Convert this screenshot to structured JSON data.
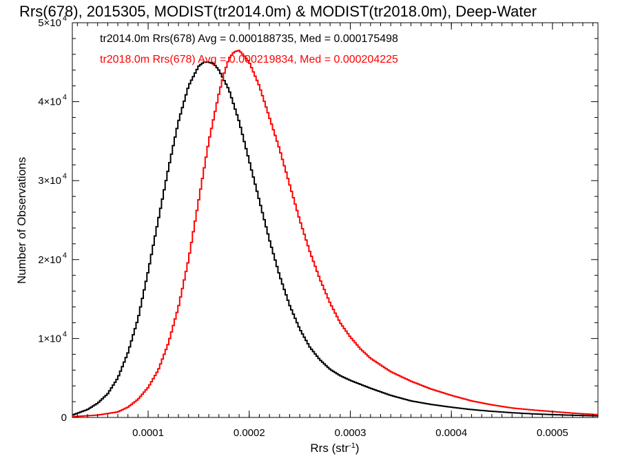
{
  "chart_data": {
    "type": "line",
    "title": "Rrs(678), 2015305, MODIST(tr2014.0m) & MODIST(tr2018.0m), Deep-Water",
    "xlabel": "Rrs (str",
    "xlabel_sup": "-1",
    "xlabel_close": ")",
    "ylabel": "Number of Observations",
    "xlim": [
      2.5e-05,
      0.000545
    ],
    "ylim": [
      0,
      50000
    ],
    "x_ticks": [
      {
        "value": 0.0001,
        "label": "0.0001"
      },
      {
        "value": 0.0002,
        "label": "0.0002"
      },
      {
        "value": 0.0003,
        "label": "0.0003"
      },
      {
        "value": 0.0004,
        "label": "0.0004"
      },
      {
        "value": 0.0005,
        "label": "0.0005"
      }
    ],
    "y_ticks": [
      {
        "value": 0,
        "mant": "0",
        "exp": ""
      },
      {
        "value": 10000,
        "mant": "1×10",
        "exp": "4"
      },
      {
        "value": 20000,
        "mant": "2×10",
        "exp": "4"
      },
      {
        "value": 30000,
        "mant": "3×10",
        "exp": "4"
      },
      {
        "value": 40000,
        "mant": "4×10",
        "exp": "4"
      },
      {
        "value": 50000,
        "mant": "5×10",
        "exp": "4"
      }
    ],
    "grid": false,
    "series": [
      {
        "label": "tr2014.0m Rrs(678) Avg = 0.000188735, Med = 0.000175498",
        "color": "#000000",
        "x": [
          2.5e-05,
          4e-05,
          5e-05,
          6e-05,
          7e-05,
          8e-05,
          9e-05,
          0.0001,
          0.00011,
          0.00012,
          0.00013,
          0.00014,
          0.00015,
          0.000155,
          0.00016,
          0.000165,
          0.00017,
          0.00018,
          0.00019,
          0.0002,
          0.00021,
          0.00022,
          0.00023,
          0.00024,
          0.00025,
          0.00026,
          0.00027,
          0.00028,
          0.00029,
          0.0003,
          0.00032,
          0.00034,
          0.00036,
          0.00038,
          0.0004,
          0.00042,
          0.00044,
          0.00046,
          0.00048,
          0.0005,
          0.00052,
          0.000545
        ],
        "y": [
          300,
          1000,
          1800,
          3000,
          5000,
          8200,
          12500,
          18500,
          25000,
          31500,
          37500,
          42000,
          44500,
          45000,
          45000,
          44800,
          44000,
          41500,
          37500,
          32500,
          27500,
          22500,
          18000,
          14200,
          11200,
          8900,
          7300,
          6100,
          5300,
          4700,
          3700,
          2800,
          2100,
          1650,
          1300,
          1000,
          780,
          600,
          460,
          360,
          280,
          200
        ]
      },
      {
        "label": "tr2018.0m Rrs(678) Avg = 0.000219834, Med = 0.000204225",
        "color": "#ff0000",
        "x": [
          2.5e-05,
          5e-05,
          7e-05,
          8e-05,
          9e-05,
          0.0001,
          0.00011,
          0.00012,
          0.00013,
          0.00014,
          0.00015,
          0.00016,
          0.00017,
          0.000175,
          0.00018,
          0.000185,
          0.00019,
          0.000195,
          0.0002,
          0.00021,
          0.00022,
          0.00023,
          0.00024,
          0.00025,
          0.00026,
          0.00027,
          0.00028,
          0.00029,
          0.0003,
          0.00031,
          0.00032,
          0.00034,
          0.00036,
          0.00038,
          0.0004,
          0.00042,
          0.00044,
          0.00046,
          0.00048,
          0.0005,
          0.00052,
          0.000545
        ],
        "y": [
          100,
          300,
          700,
          1300,
          2300,
          3800,
          6000,
          9400,
          14000,
          20000,
          27500,
          35000,
          41000,
          43500,
          45500,
          46300,
          46500,
          45800,
          45000,
          42000,
          38000,
          34000,
          29500,
          25000,
          21000,
          17500,
          14500,
          12000,
          10200,
          8700,
          7500,
          5800,
          4600,
          3600,
          2800,
          2100,
          1600,
          1200,
          950,
          750,
          550,
          350
        ]
      }
    ]
  }
}
